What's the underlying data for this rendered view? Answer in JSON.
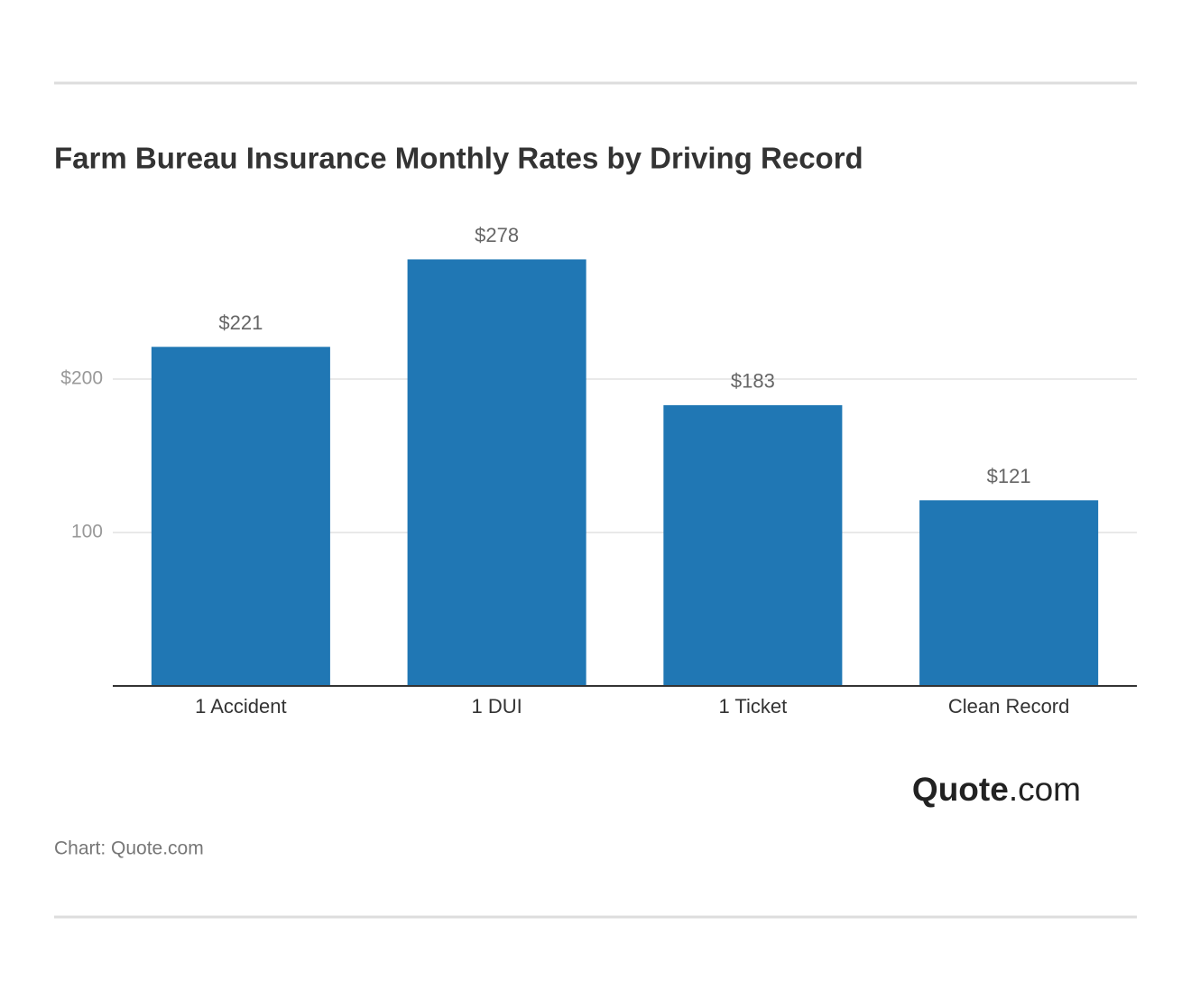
{
  "chart_data": {
    "type": "bar",
    "title": "Farm Bureau Insurance Monthly Rates by Driving Record",
    "categories": [
      "1 Accident",
      "1 DUI",
      "1 Ticket",
      "Clean Record"
    ],
    "values": [
      221,
      278,
      183,
      121
    ],
    "value_labels": [
      "$221",
      "$278",
      "$183",
      "$121"
    ],
    "color": "#2077b4",
    "ylim": [
      0,
      300
    ],
    "yticks": [
      100,
      {
        "value": 200,
        "label": "$200"
      }
    ],
    "grid": true,
    "logo_bold": "Quote",
    "logo_suffix": ".com",
    "source": "Chart: Quote.com"
  }
}
